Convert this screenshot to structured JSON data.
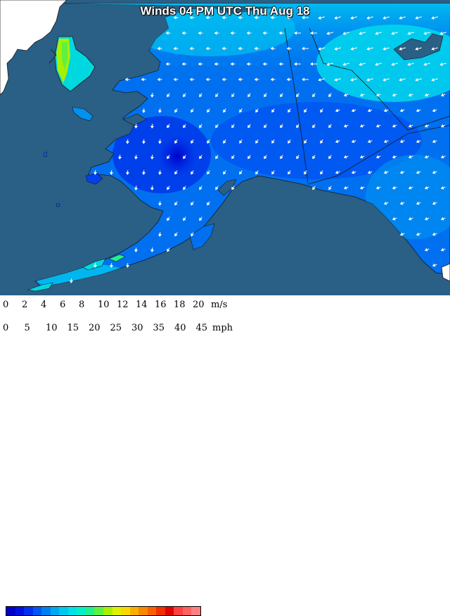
{
  "title": "Winds 04 PM UTC Thu Aug 18",
  "legend": {
    "ms_unit": "m/s",
    "mph_unit": "mph",
    "ms_ticks": [
      "0",
      "2",
      "4",
      "6",
      "8",
      "10",
      "12",
      "14",
      "16",
      "18",
      "20"
    ],
    "mph_ticks": [
      "0",
      "5",
      "10",
      "15",
      "20",
      "25",
      "30",
      "35",
      "40",
      "45"
    ],
    "colors": [
      "#0000c8",
      "#0010e0",
      "#0030f0",
      "#0058f0",
      "#0080f0",
      "#00a8f0",
      "#00c8f0",
      "#00e0e8",
      "#00f0c8",
      "#20f090",
      "#60f040",
      "#a8f000",
      "#e0f000",
      "#f8d800",
      "#f8b000",
      "#f88800",
      "#f86000",
      "#f03000",
      "#e00000",
      "#ff4040",
      "#ff6060",
      "#ff8080"
    ]
  },
  "colors": {
    "ocean": "#2a5f86",
    "land_outside": "#ffffff",
    "wind_slow": "#0000c8",
    "wind_medium": "#0080f0",
    "wind_fast": "#00e0e8",
    "border": "#1a1a1a"
  }
}
